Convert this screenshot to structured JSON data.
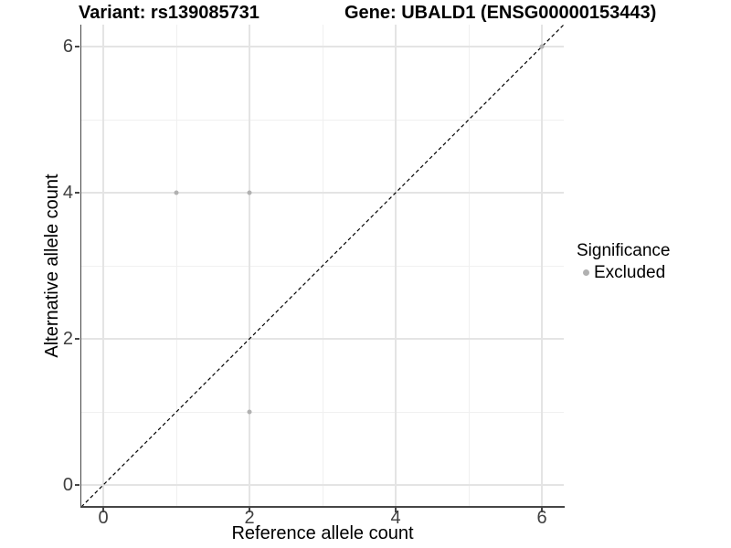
{
  "chart_data": {
    "type": "scatter",
    "title_left": "Variant: rs139085731",
    "title_right": "Gene: UBALD1 (ENSG00000153443)",
    "xlabel": "Reference allele count",
    "ylabel": "Alternative allele count",
    "xlim": [
      -0.3,
      6.3
    ],
    "ylim": [
      -0.3,
      6.3
    ],
    "x_major_ticks": [
      0,
      2,
      4,
      6
    ],
    "x_minor_ticks": [
      1,
      3,
      5
    ],
    "y_major_ticks": [
      0,
      2,
      4,
      6
    ],
    "y_minor_ticks": [
      1,
      3,
      5
    ],
    "grid": "major and minor gridlines, light grey on white",
    "identity_line": {
      "style": "dashed",
      "color": "#000000",
      "from": -0.3,
      "to": 6.3
    },
    "series": [
      {
        "name": "Excluded",
        "color": "#b1b1b1",
        "points": [
          {
            "x": 1,
            "y": 4
          },
          {
            "x": 2,
            "y": 4
          },
          {
            "x": 2,
            "y": 1
          },
          {
            "x": 6,
            "y": 6
          }
        ]
      }
    ],
    "legend": {
      "title": "Significance",
      "position": "right-center",
      "items": [
        {
          "label": "Excluded",
          "color": "#b1b1b1"
        }
      ]
    },
    "colors": {
      "background": "#ffffff",
      "axis_line": "#464646",
      "tick_label": "#404040",
      "grid_major": "#e4e4e4",
      "grid_minor": "#f0f0f0"
    }
  }
}
